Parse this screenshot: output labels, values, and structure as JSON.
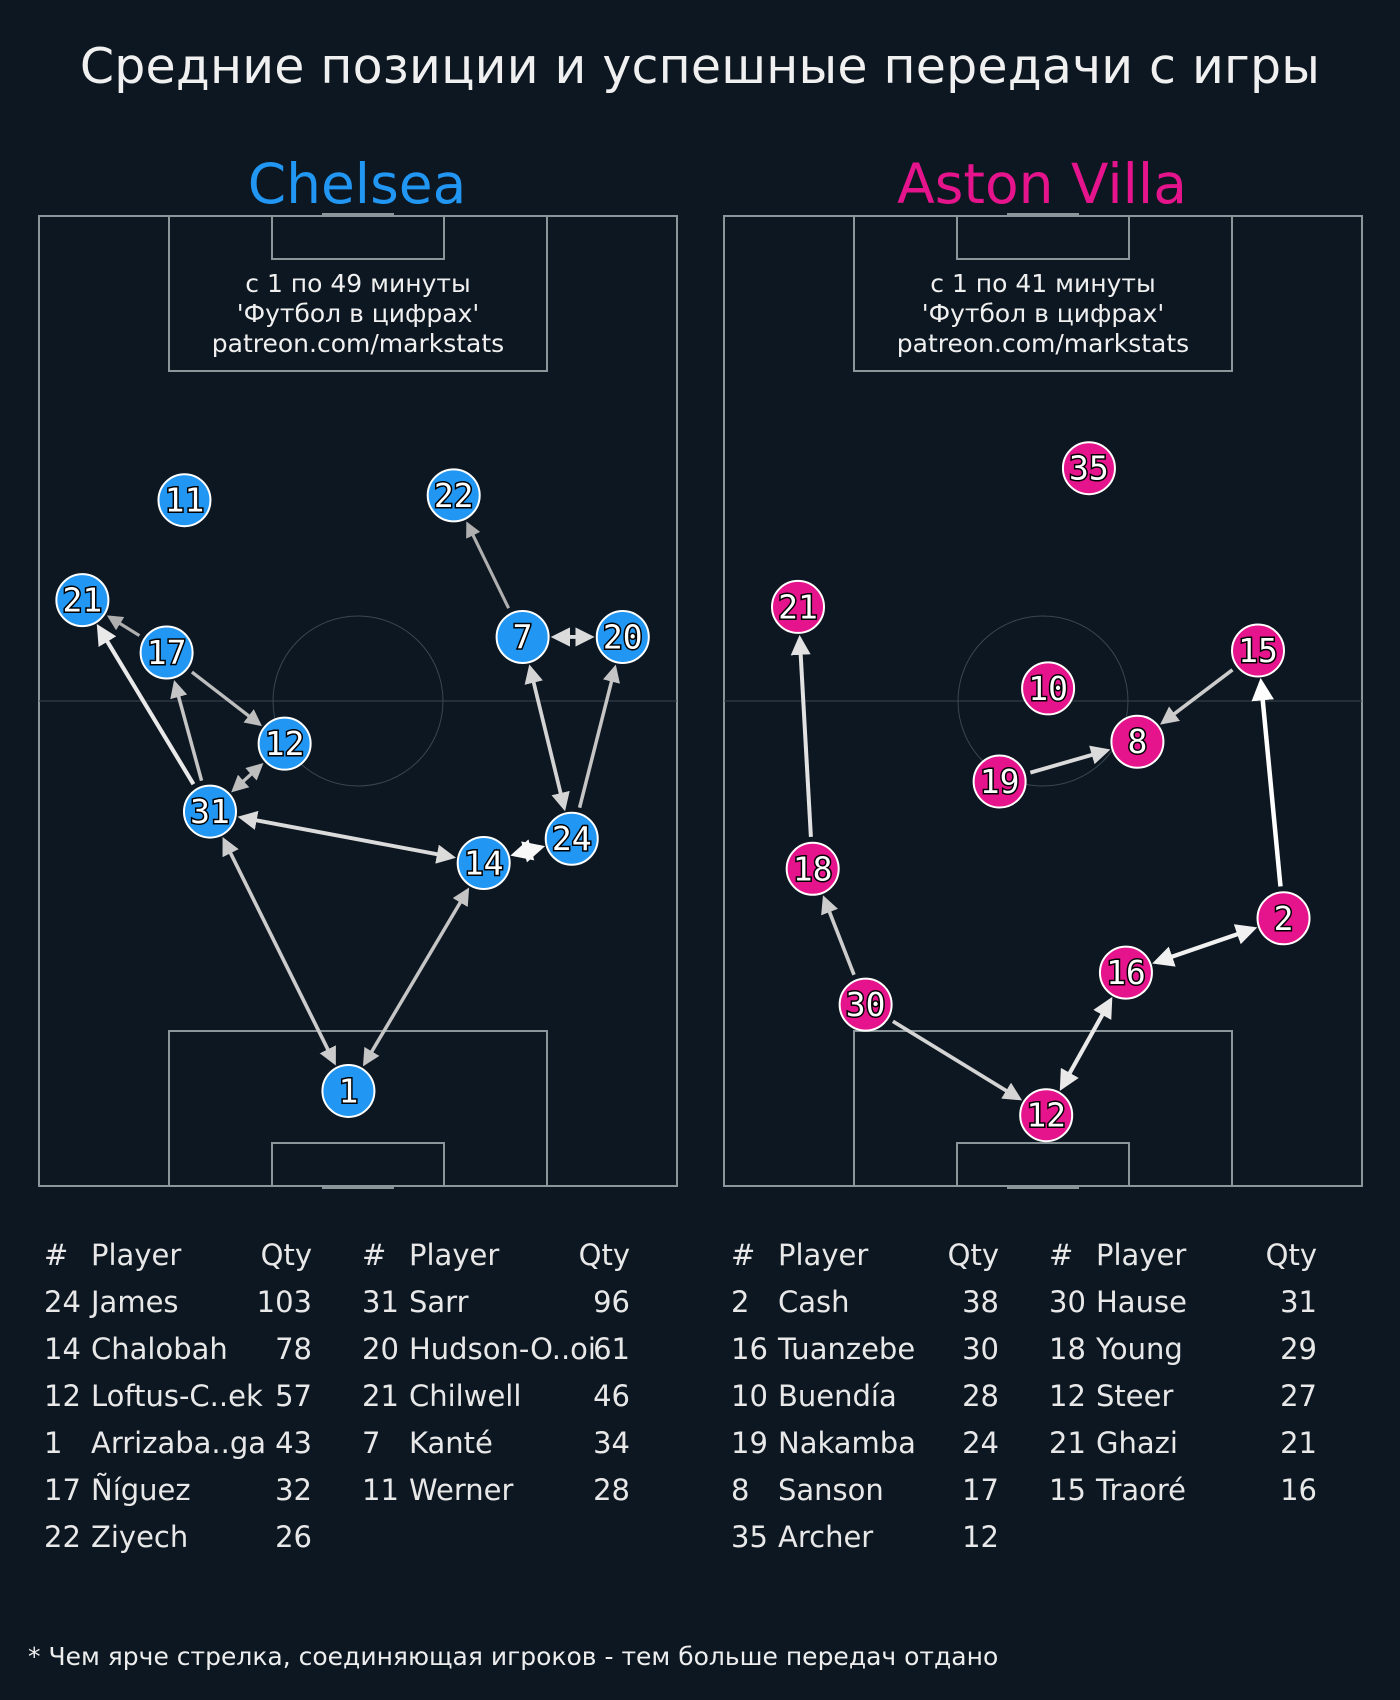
{
  "title": "Средние позиции и успешные передачи с игры",
  "footnote": "* Чем ярче стрелка, соединяющая игроков - тем больше передач отдано",
  "colors": {
    "background": "#0d1721",
    "chelsea": "#2196f3",
    "villa": "#e6148c",
    "pitch_line": "#8a9699"
  },
  "teams": [
    {
      "name": "Chelsea",
      "color": "#2196f3",
      "note_lines": [
        "с 1 по 49 минуты",
        "'Футбол в цифрах'",
        "patreon.com/markstats"
      ],
      "players": [
        {
          "num": "11",
          "x": 22.8,
          "y": 70.7
        },
        {
          "num": "22",
          "x": 65.0,
          "y": 71.2
        },
        {
          "num": "21",
          "x": 6.8,
          "y": 60.4
        },
        {
          "num": "17",
          "x": 20.0,
          "y": 55.0
        },
        {
          "num": "7",
          "x": 75.8,
          "y": 56.6
        },
        {
          "num": "20",
          "x": 91.5,
          "y": 56.6
        },
        {
          "num": "12",
          "x": 38.5,
          "y": 45.6
        },
        {
          "num": "31",
          "x": 26.8,
          "y": 38.6
        },
        {
          "num": "24",
          "x": 83.5,
          "y": 35.8
        },
        {
          "num": "14",
          "x": 69.7,
          "y": 33.3
        },
        {
          "num": "1",
          "x": 48.5,
          "y": 9.8
        }
      ],
      "passes": [
        {
          "from": "31",
          "to": "21",
          "brightness": 0.85,
          "bidirectional": false
        },
        {
          "from": "17",
          "to": "21",
          "brightness": 0.45,
          "bidirectional": false
        },
        {
          "from": "31",
          "to": "17",
          "brightness": 0.6,
          "bidirectional": false
        },
        {
          "from": "17",
          "to": "12",
          "brightness": 0.55,
          "bidirectional": false
        },
        {
          "from": "31",
          "to": "12",
          "brightness": 0.55,
          "bidirectional": true
        },
        {
          "from": "31",
          "to": "14",
          "brightness": 0.75,
          "bidirectional": true
        },
        {
          "from": "1",
          "to": "31",
          "brightness": 0.65,
          "bidirectional": true
        },
        {
          "from": "1",
          "to": "14",
          "brightness": 0.6,
          "bidirectional": true
        },
        {
          "from": "14",
          "to": "24",
          "brightness": 0.95,
          "bidirectional": true
        },
        {
          "from": "24",
          "to": "7",
          "brightness": 0.7,
          "bidirectional": true
        },
        {
          "from": "24",
          "to": "20",
          "brightness": 0.6,
          "bidirectional": false
        },
        {
          "from": "7",
          "to": "20",
          "brightness": 0.75,
          "bidirectional": true
        },
        {
          "from": "7",
          "to": "22",
          "brightness": 0.45,
          "bidirectional": false
        }
      ],
      "table_columns": [
        "#",
        "Player",
        "Qty"
      ],
      "table": [
        [
          {
            "num": "24",
            "player": "James",
            "qty": "103"
          },
          {
            "num": "14",
            "player": "Chalobah",
            "qty": "78"
          },
          {
            "num": "12",
            "player": "Loftus-C..ek",
            "qty": "57"
          },
          {
            "num": "1",
            "player": "Arrizaba..ga",
            "qty": "43"
          },
          {
            "num": "17",
            "player": "Ñíguez",
            "qty": "32"
          },
          {
            "num": "22",
            "player": "Ziyech",
            "qty": "26"
          }
        ],
        [
          {
            "num": "31",
            "player": "Sarr",
            "qty": "96"
          },
          {
            "num": "20",
            "player": "Hudson-O..oi",
            "qty": "61"
          },
          {
            "num": "21",
            "player": "Chilwell",
            "qty": "46"
          },
          {
            "num": "7",
            "player": "Kanté",
            "qty": "34"
          },
          {
            "num": "11",
            "player": "Werner",
            "qty": "28"
          }
        ]
      ]
    },
    {
      "name": "Aston Villa",
      "color": "#e6148c",
      "note_lines": [
        "с 1 по 41 минуты",
        "'Футбол в цифрах'",
        "patreon.com/markstats"
      ],
      "players": [
        {
          "num": "35",
          "x": 57.2,
          "y": 74.0
        },
        {
          "num": "21",
          "x": 11.6,
          "y": 59.7
        },
        {
          "num": "15",
          "x": 83.7,
          "y": 55.2
        },
        {
          "num": "10",
          "x": 50.8,
          "y": 51.3
        },
        {
          "num": "8",
          "x": 64.8,
          "y": 45.8
        },
        {
          "num": "19",
          "x": 43.2,
          "y": 41.7
        },
        {
          "num": "18",
          "x": 13.9,
          "y": 32.7
        },
        {
          "num": "2",
          "x": 87.7,
          "y": 27.6
        },
        {
          "num": "16",
          "x": 63.0,
          "y": 22.0
        },
        {
          "num": "30",
          "x": 22.2,
          "y": 18.7
        },
        {
          "num": "12",
          "x": 50.5,
          "y": 7.3
        }
      ],
      "passes": [
        {
          "from": "18",
          "to": "21",
          "brightness": 0.8,
          "bidirectional": false
        },
        {
          "from": "30",
          "to": "18",
          "brightness": 0.65,
          "bidirectional": false
        },
        {
          "from": "30",
          "to": "12",
          "brightness": 0.7,
          "bidirectional": false
        },
        {
          "from": "12",
          "to": "16",
          "brightness": 0.85,
          "bidirectional": true
        },
        {
          "from": "16",
          "to": "2",
          "brightness": 0.9,
          "bidirectional": true
        },
        {
          "from": "2",
          "to": "15",
          "brightness": 1.0,
          "bidirectional": false
        },
        {
          "from": "15",
          "to": "8",
          "brightness": 0.65,
          "bidirectional": false
        },
        {
          "from": "19",
          "to": "8",
          "brightness": 0.75,
          "bidirectional": false
        }
      ],
      "table_columns": [
        "#",
        "Player",
        "Qty"
      ],
      "table": [
        [
          {
            "num": "2",
            "player": "Cash",
            "qty": "38"
          },
          {
            "num": "16",
            "player": "Tuanzebe",
            "qty": "30"
          },
          {
            "num": "10",
            "player": "Buendía",
            "qty": "28"
          },
          {
            "num": "19",
            "player": "Nakamba",
            "qty": "24"
          },
          {
            "num": "8",
            "player": "Sanson",
            "qty": "17"
          },
          {
            "num": "35",
            "player": "Archer",
            "qty": "12"
          }
        ],
        [
          {
            "num": "30",
            "player": "Hause",
            "qty": "31"
          },
          {
            "num": "18",
            "player": "Young",
            "qty": "29"
          },
          {
            "num": "12",
            "player": "Steer",
            "qty": "27"
          },
          {
            "num": "21",
            "player": "Ghazi",
            "qty": "21"
          },
          {
            "num": "15",
            "player": "Traoré",
            "qty": "16"
          }
        ]
      ]
    }
  ]
}
